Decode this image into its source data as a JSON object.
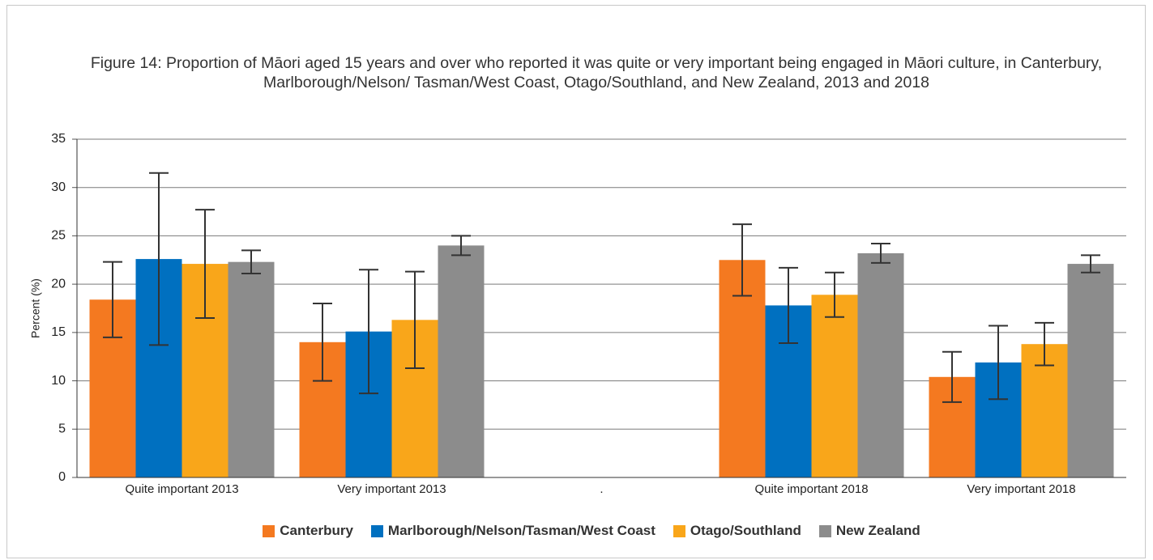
{
  "chart_data": {
    "type": "bar",
    "title": "Figure 14: Proportion of Māori aged 15 years and over who reported it was quite or very important being engaged in Māori culture, in Canterbury, Marlborough/Nelson/ Tasman/West Coast, Otago/Southland, and New Zealand, 2013 and 2018",
    "y_label": "Percent (%)",
    "categories": [
      "Quite important 2013",
      "Very important 2013",
      ".",
      "Quite important 2018",
      "Very important 2018"
    ],
    "series": [
      {
        "name": "Canterbury",
        "color": "#f47920",
        "values": [
          18.4,
          14.0,
          null,
          22.5,
          10.4
        ],
        "errors": [
          3.9,
          4.0,
          null,
          3.7,
          2.6
        ]
      },
      {
        "name": "Marlborough/Nelson/Tasman/West Coast",
        "color": "#0070c0",
        "values": [
          22.6,
          15.1,
          null,
          17.8,
          11.9
        ],
        "errors": [
          8.9,
          6.4,
          null,
          3.9,
          3.8
        ]
      },
      {
        "name": "Otago/Southland",
        "color": "#f9a61a",
        "values": [
          22.1,
          16.3,
          null,
          18.9,
          13.8
        ],
        "errors": [
          5.6,
          5.0,
          null,
          2.3,
          2.2
        ]
      },
      {
        "name": "New Zealand",
        "color": "#8c8c8c",
        "values": [
          22.3,
          24.0,
          null,
          23.2,
          22.1
        ],
        "errors": [
          1.2,
          1.0,
          null,
          1.0,
          0.9
        ]
      }
    ],
    "ylim": [
      0,
      35
    ],
    "yticks": [
      0,
      5,
      10,
      15,
      20,
      25,
      30,
      35
    ],
    "grid": true
  }
}
